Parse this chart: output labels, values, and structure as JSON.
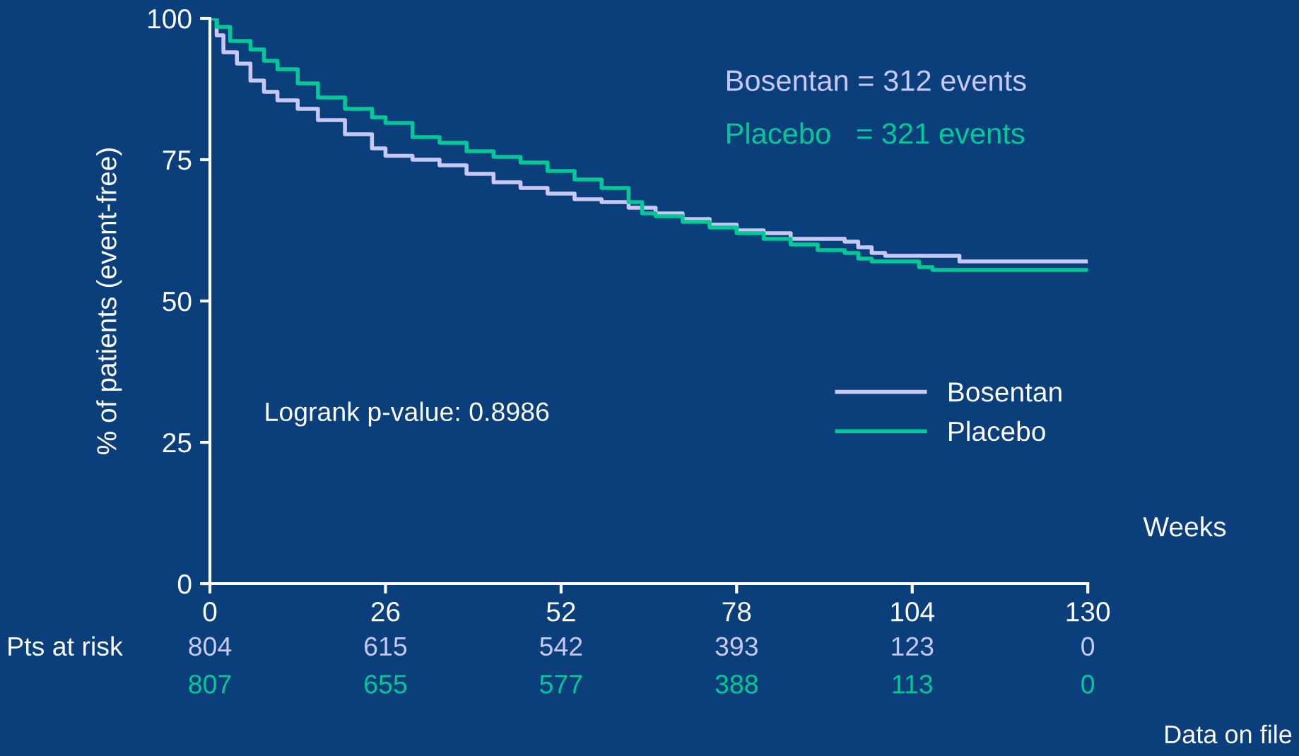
{
  "chart_data": {
    "type": "step",
    "xlabel": "Weeks",
    "ylabel": "% of patients (event-free)",
    "xlim": [
      0,
      130
    ],
    "ylim": [
      0,
      100
    ],
    "xticks": [
      0,
      26,
      52,
      78,
      104,
      130
    ],
    "yticks": [
      0,
      25,
      50,
      75,
      100
    ],
    "grid": false,
    "legend": "right",
    "line_style": "solid",
    "marker": "none",
    "series": [
      {
        "name": "Bosentan",
        "color": "#c8c8f5",
        "x": [
          0,
          1,
          2,
          4,
          6,
          8,
          10,
          13,
          16,
          20,
          24,
          26,
          30,
          34,
          38,
          42,
          46,
          50,
          54,
          58,
          62,
          66,
          70,
          74,
          78,
          82,
          86,
          90,
          94,
          96,
          98,
          100,
          104,
          110,
          111,
          130
        ],
        "values": [
          100,
          97,
          94,
          92,
          89,
          87,
          85.5,
          84,
          82,
          79.5,
          77,
          75.7,
          75,
          74,
          72.5,
          71,
          70,
          69,
          68,
          67.5,
          66.5,
          65.5,
          64.5,
          63.5,
          62.5,
          62,
          61,
          61,
          60.5,
          59.5,
          58.5,
          58,
          58,
          58,
          57,
          57
        ]
      },
      {
        "name": "Placebo",
        "color": "#00c896",
        "x": [
          0,
          1,
          3,
          6,
          8,
          10,
          13,
          16,
          20,
          24,
          26,
          30,
          34,
          38,
          42,
          46,
          50,
          54,
          58,
          62,
          64,
          66,
          70,
          74,
          78,
          82,
          86,
          90,
          94,
          96,
          98,
          104,
          105,
          107,
          130
        ],
        "values": [
          100,
          98.5,
          96,
          94.5,
          92.5,
          91,
          88.5,
          86,
          84,
          82.5,
          81.5,
          79,
          78,
          76.5,
          75.5,
          74.5,
          73,
          71.5,
          70,
          67.5,
          65.5,
          65,
          64,
          63,
          62,
          61,
          60,
          59,
          58.5,
          57.5,
          57,
          57,
          56,
          55.5,
          55.5
        ]
      }
    ],
    "annotations": [
      "Bosentan = 312 events",
      "Placebo   = 321 events",
      "Logrank p-value: 0.8986",
      "Pts at risk",
      "804",
      "615",
      "542",
      "393",
      "123",
      "0",
      "807",
      "655",
      "577",
      "388",
      "113",
      "0",
      "Data on file"
    ]
  }
}
